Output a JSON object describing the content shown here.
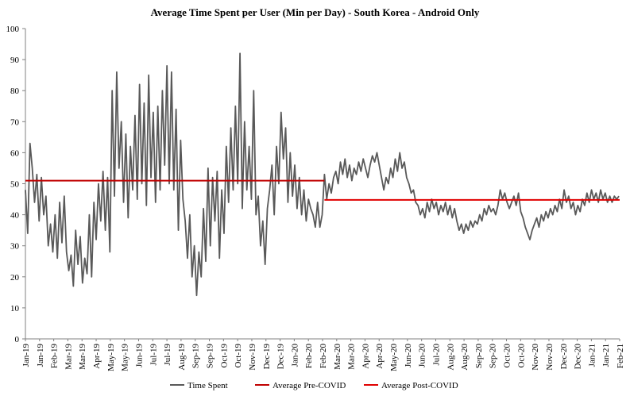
{
  "chart_data": {
    "type": "line",
    "title": "Average Time Spent per User (Min per Day) - South Korea - Android Only",
    "xlabel": "",
    "ylabel": "",
    "ylim": [
      0,
      100
    ],
    "y_ticks": [
      "0",
      "10",
      "20",
      "30",
      "40",
      "50",
      "60",
      "70",
      "80",
      "90",
      "100"
    ],
    "grid": false,
    "legend_position": "bottom",
    "x_tick_labels": [
      "Jan-19",
      "Jan-19",
      "Feb-19",
      "Mar-19",
      "Mar-19",
      "Apr-19",
      "May-19",
      "May-19",
      "Jun-19",
      "Jul-19",
      "Jul-19",
      "Aug-19",
      "Sep-19",
      "Sep-19",
      "Oct-19",
      "Oct-19",
      "Nov-19",
      "Dec-19",
      "Dec-19",
      "Jan-20",
      "Feb-20",
      "Feb-20",
      "Mar-20",
      "Mar-20",
      "Apr-20",
      "Apr-20",
      "May-20",
      "Jun-20",
      "Jun-20",
      "Jul-20",
      "Aug-20",
      "Aug-20",
      "Sep-20",
      "Sep-20",
      "Oct-20",
      "Oct-20",
      "Nov-20",
      "Nov-20",
      "Dec-20",
      "Dec-20",
      "Jan-21",
      "Jan-21",
      "Feb-21"
    ],
    "x_range": [
      "2019-01-01",
      "2021-02-20"
    ],
    "series": [
      {
        "name": "Time Spent",
        "color": "#595959",
        "points": [
          [
            "2019-01-01",
            48
          ],
          [
            "2019-01-04",
            34
          ],
          [
            "2019-01-07",
            63
          ],
          [
            "2019-01-10",
            55
          ],
          [
            "2019-01-13",
            44
          ],
          [
            "2019-01-16",
            53
          ],
          [
            "2019-01-19",
            38
          ],
          [
            "2019-01-22",
            52
          ],
          [
            "2019-01-25",
            40
          ],
          [
            "2019-01-28",
            46
          ],
          [
            "2019-01-31",
            30
          ],
          [
            "2019-02-03",
            37
          ],
          [
            "2019-02-06",
            28
          ],
          [
            "2019-02-09",
            40
          ],
          [
            "2019-02-12",
            26
          ],
          [
            "2019-02-15",
            44
          ],
          [
            "2019-02-18",
            31
          ],
          [
            "2019-02-21",
            46
          ],
          [
            "2019-02-24",
            28
          ],
          [
            "2019-02-27",
            22
          ],
          [
            "2019-03-02",
            27
          ],
          [
            "2019-03-05",
            17
          ],
          [
            "2019-03-08",
            35
          ],
          [
            "2019-03-11",
            24
          ],
          [
            "2019-03-14",
            33
          ],
          [
            "2019-03-17",
            18
          ],
          [
            "2019-03-20",
            26
          ],
          [
            "2019-03-23",
            21
          ],
          [
            "2019-03-26",
            40
          ],
          [
            "2019-03-29",
            20
          ],
          [
            "2019-04-01",
            44
          ],
          [
            "2019-04-04",
            32
          ],
          [
            "2019-04-07",
            50
          ],
          [
            "2019-04-10",
            38
          ],
          [
            "2019-04-13",
            54
          ],
          [
            "2019-04-16",
            35
          ],
          [
            "2019-04-19",
            52
          ],
          [
            "2019-04-22",
            28
          ],
          [
            "2019-04-25",
            80
          ],
          [
            "2019-04-28",
            46
          ],
          [
            "2019-05-01",
            86
          ],
          [
            "2019-05-04",
            55
          ],
          [
            "2019-05-07",
            70
          ],
          [
            "2019-05-10",
            44
          ],
          [
            "2019-05-13",
            66
          ],
          [
            "2019-05-16",
            39
          ],
          [
            "2019-05-19",
            62
          ],
          [
            "2019-05-22",
            48
          ],
          [
            "2019-05-25",
            72
          ],
          [
            "2019-05-28",
            45
          ],
          [
            "2019-05-31",
            82
          ],
          [
            "2019-06-03",
            50
          ],
          [
            "2019-06-06",
            76
          ],
          [
            "2019-06-09",
            43
          ],
          [
            "2019-06-12",
            85
          ],
          [
            "2019-06-15",
            52
          ],
          [
            "2019-06-18",
            73
          ],
          [
            "2019-06-21",
            44
          ],
          [
            "2019-06-24",
            75
          ],
          [
            "2019-06-27",
            48
          ],
          [
            "2019-06-30",
            80
          ],
          [
            "2019-07-03",
            56
          ],
          [
            "2019-07-06",
            88
          ],
          [
            "2019-07-09",
            50
          ],
          [
            "2019-07-12",
            86
          ],
          [
            "2019-07-15",
            48
          ],
          [
            "2019-07-18",
            74
          ],
          [
            "2019-07-21",
            35
          ],
          [
            "2019-07-24",
            64
          ],
          [
            "2019-07-27",
            45
          ],
          [
            "2019-07-30",
            38
          ],
          [
            "2019-08-02",
            26
          ],
          [
            "2019-08-05",
            40
          ],
          [
            "2019-08-08",
            20
          ],
          [
            "2019-08-11",
            30
          ],
          [
            "2019-08-14",
            14
          ],
          [
            "2019-08-17",
            28
          ],
          [
            "2019-08-20",
            20
          ],
          [
            "2019-08-23",
            42
          ],
          [
            "2019-08-26",
            25
          ],
          [
            "2019-08-29",
            55
          ],
          [
            "2019-09-01",
            30
          ],
          [
            "2019-09-04",
            52
          ],
          [
            "2019-09-07",
            38
          ],
          [
            "2019-09-10",
            54
          ],
          [
            "2019-09-13",
            26
          ],
          [
            "2019-09-16",
            48
          ],
          [
            "2019-09-19",
            34
          ],
          [
            "2019-09-22",
            62
          ],
          [
            "2019-09-25",
            44
          ],
          [
            "2019-09-28",
            68
          ],
          [
            "2019-10-01",
            48
          ],
          [
            "2019-10-04",
            75
          ],
          [
            "2019-10-07",
            50
          ],
          [
            "2019-10-10",
            92
          ],
          [
            "2019-10-13",
            42
          ],
          [
            "2019-10-16",
            70
          ],
          [
            "2019-10-19",
            48
          ],
          [
            "2019-10-22",
            62
          ],
          [
            "2019-10-25",
            45
          ],
          [
            "2019-10-28",
            80
          ],
          [
            "2019-10-31",
            40
          ],
          [
            "2019-11-03",
            46
          ],
          [
            "2019-11-06",
            30
          ],
          [
            "2019-11-09",
            38
          ],
          [
            "2019-11-12",
            24
          ],
          [
            "2019-11-15",
            42
          ],
          [
            "2019-11-18",
            48
          ],
          [
            "2019-11-21",
            56
          ],
          [
            "2019-11-24",
            40
          ],
          [
            "2019-11-27",
            62
          ],
          [
            "2019-11-30",
            50
          ],
          [
            "2019-12-03",
            73
          ],
          [
            "2019-12-06",
            58
          ],
          [
            "2019-12-09",
            68
          ],
          [
            "2019-12-12",
            44
          ],
          [
            "2019-12-15",
            60
          ],
          [
            "2019-12-18",
            46
          ],
          [
            "2019-12-21",
            56
          ],
          [
            "2019-12-24",
            42
          ],
          [
            "2019-12-27",
            52
          ],
          [
            "2019-12-30",
            40
          ],
          [
            "2020-01-02",
            48
          ],
          [
            "2020-01-05",
            38
          ],
          [
            "2020-01-08",
            45
          ],
          [
            "2020-01-11",
            42
          ],
          [
            "2020-01-14",
            40
          ],
          [
            "2020-01-17",
            36
          ],
          [
            "2020-01-20",
            44
          ],
          [
            "2020-01-23",
            36
          ],
          [
            "2020-01-26",
            40
          ],
          [
            "2020-01-29",
            53
          ],
          [
            "2020-02-01",
            45
          ],
          [
            "2020-02-04",
            50
          ],
          [
            "2020-02-07",
            47
          ],
          [
            "2020-02-10",
            52
          ],
          [
            "2020-02-13",
            54
          ],
          [
            "2020-02-16",
            50
          ],
          [
            "2020-02-19",
            57
          ],
          [
            "2020-02-22",
            53
          ],
          [
            "2020-02-25",
            58
          ],
          [
            "2020-02-28",
            52
          ],
          [
            "2020-03-02",
            56
          ],
          [
            "2020-03-05",
            51
          ],
          [
            "2020-03-08",
            55
          ],
          [
            "2020-03-11",
            53
          ],
          [
            "2020-03-14",
            57
          ],
          [
            "2020-03-17",
            54
          ],
          [
            "2020-03-20",
            58
          ],
          [
            "2020-03-23",
            55
          ],
          [
            "2020-03-26",
            52
          ],
          [
            "2020-03-29",
            56
          ],
          [
            "2020-04-01",
            59
          ],
          [
            "2020-04-04",
            57
          ],
          [
            "2020-04-07",
            60
          ],
          [
            "2020-04-10",
            56
          ],
          [
            "2020-04-13",
            52
          ],
          [
            "2020-04-16",
            48
          ],
          [
            "2020-04-19",
            52
          ],
          [
            "2020-04-22",
            50
          ],
          [
            "2020-04-25",
            55
          ],
          [
            "2020-04-28",
            52
          ],
          [
            "2020-05-01",
            58
          ],
          [
            "2020-05-04",
            54
          ],
          [
            "2020-05-07",
            60
          ],
          [
            "2020-05-10",
            55
          ],
          [
            "2020-05-13",
            57
          ],
          [
            "2020-05-16",
            52
          ],
          [
            "2020-05-19",
            50
          ],
          [
            "2020-05-22",
            47
          ],
          [
            "2020-05-25",
            48
          ],
          [
            "2020-05-28",
            44
          ],
          [
            "2020-05-31",
            43
          ],
          [
            "2020-06-03",
            40
          ],
          [
            "2020-06-06",
            42
          ],
          [
            "2020-06-09",
            39
          ],
          [
            "2020-06-12",
            44
          ],
          [
            "2020-06-15",
            41
          ],
          [
            "2020-06-18",
            45
          ],
          [
            "2020-06-21",
            42
          ],
          [
            "2020-06-24",
            44
          ],
          [
            "2020-06-27",
            40
          ],
          [
            "2020-06-30",
            43
          ],
          [
            "2020-07-03",
            41
          ],
          [
            "2020-07-06",
            44
          ],
          [
            "2020-07-09",
            40
          ],
          [
            "2020-07-12",
            43
          ],
          [
            "2020-07-15",
            39
          ],
          [
            "2020-07-18",
            42
          ],
          [
            "2020-07-21",
            38
          ],
          [
            "2020-07-24",
            35
          ],
          [
            "2020-07-27",
            37
          ],
          [
            "2020-07-30",
            34
          ],
          [
            "2020-08-02",
            37
          ],
          [
            "2020-08-05",
            35
          ],
          [
            "2020-08-08",
            38
          ],
          [
            "2020-08-11",
            36
          ],
          [
            "2020-08-14",
            38
          ],
          [
            "2020-08-17",
            37
          ],
          [
            "2020-08-20",
            40
          ],
          [
            "2020-08-23",
            38
          ],
          [
            "2020-08-26",
            42
          ],
          [
            "2020-08-29",
            40
          ],
          [
            "2020-09-01",
            43
          ],
          [
            "2020-09-04",
            41
          ],
          [
            "2020-09-07",
            42
          ],
          [
            "2020-09-10",
            40
          ],
          [
            "2020-09-13",
            43
          ],
          [
            "2020-09-16",
            48
          ],
          [
            "2020-09-19",
            45
          ],
          [
            "2020-09-22",
            47
          ],
          [
            "2020-09-25",
            44
          ],
          [
            "2020-09-28",
            42
          ],
          [
            "2020-10-01",
            44
          ],
          [
            "2020-10-04",
            46
          ],
          [
            "2020-10-07",
            43
          ],
          [
            "2020-10-10",
            47
          ],
          [
            "2020-10-13",
            41
          ],
          [
            "2020-10-16",
            39
          ],
          [
            "2020-10-19",
            36
          ],
          [
            "2020-10-22",
            34
          ],
          [
            "2020-10-25",
            32
          ],
          [
            "2020-10-28",
            35
          ],
          [
            "2020-10-31",
            37
          ],
          [
            "2020-11-03",
            39
          ],
          [
            "2020-11-06",
            36
          ],
          [
            "2020-11-09",
            40
          ],
          [
            "2020-11-12",
            38
          ],
          [
            "2020-11-15",
            41
          ],
          [
            "2020-11-18",
            39
          ],
          [
            "2020-11-21",
            42
          ],
          [
            "2020-11-24",
            40
          ],
          [
            "2020-11-27",
            43
          ],
          [
            "2020-11-30",
            41
          ],
          [
            "2020-12-03",
            45
          ],
          [
            "2020-12-06",
            42
          ],
          [
            "2020-12-09",
            48
          ],
          [
            "2020-12-12",
            44
          ],
          [
            "2020-12-15",
            46
          ],
          [
            "2020-12-18",
            42
          ],
          [
            "2020-12-21",
            44
          ],
          [
            "2020-12-24",
            40
          ],
          [
            "2020-12-27",
            43
          ],
          [
            "2020-12-30",
            41
          ],
          [
            "2021-01-02",
            45
          ],
          [
            "2021-01-05",
            43
          ],
          [
            "2021-01-08",
            47
          ],
          [
            "2021-01-11",
            44
          ],
          [
            "2021-01-14",
            48
          ],
          [
            "2021-01-17",
            45
          ],
          [
            "2021-01-20",
            47
          ],
          [
            "2021-01-23",
            44
          ],
          [
            "2021-01-26",
            48
          ],
          [
            "2021-01-29",
            45
          ],
          [
            "2021-02-01",
            47
          ],
          [
            "2021-02-04",
            44
          ],
          [
            "2021-02-07",
            46
          ],
          [
            "2021-02-10",
            44
          ],
          [
            "2021-02-13",
            46
          ],
          [
            "2021-02-16",
            45
          ],
          [
            "2021-02-19",
            46
          ]
        ]
      },
      {
        "name": "Average Pre-COVID",
        "color": "#c00000",
        "points": [
          [
            "2019-01-01",
            51
          ],
          [
            "2020-01-29",
            51
          ]
        ]
      },
      {
        "name": "Average Post-COVID",
        "color": "#e00000",
        "points": [
          [
            "2020-01-29",
            44.8
          ],
          [
            "2021-02-20",
            44.8
          ]
        ]
      }
    ]
  }
}
